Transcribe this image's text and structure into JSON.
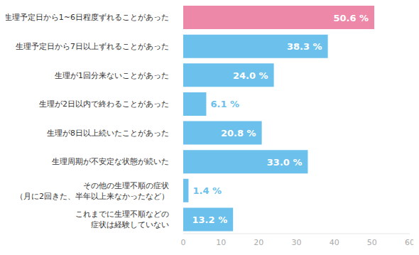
{
  "chart_data": {
    "type": "bar",
    "orientation": "horizontal",
    "categories": [
      "生理予定日から1~6日程度ずれることがあった",
      "生理予定日から7日以上ずれることがあった",
      "生理が1回分来ないことがあった",
      "生理が2日以内で終わることがあった",
      "生理が8日以上続いたことがあった",
      "生理周期が不安定な状態が続いた",
      "その他の生理不順の症状\n（月に2回きた、半年以上来なかったなど）",
      "これまでに生理不順などの\n症状は経験していない"
    ],
    "values": [
      50.6,
      38.3,
      24.0,
      6.1,
      20.8,
      33.0,
      1.4,
      13.2
    ],
    "value_labels": [
      "50.6 %",
      "38.3 %",
      "24.0 %",
      "6.1 %",
      "20.8 %",
      "33.0 %",
      "1.4 %",
      "13.2 %"
    ],
    "colors": [
      "#ee88a8",
      "#6cc0ec",
      "#6cc0ec",
      "#6cc0ec",
      "#6cc0ec",
      "#6cc0ec",
      "#6cc0ec",
      "#6cc0ec"
    ],
    "xlim": [
      0,
      60
    ],
    "xticks": [
      0,
      10,
      20,
      30,
      40,
      50,
      60
    ],
    "grid": false,
    "data_labels": true
  }
}
